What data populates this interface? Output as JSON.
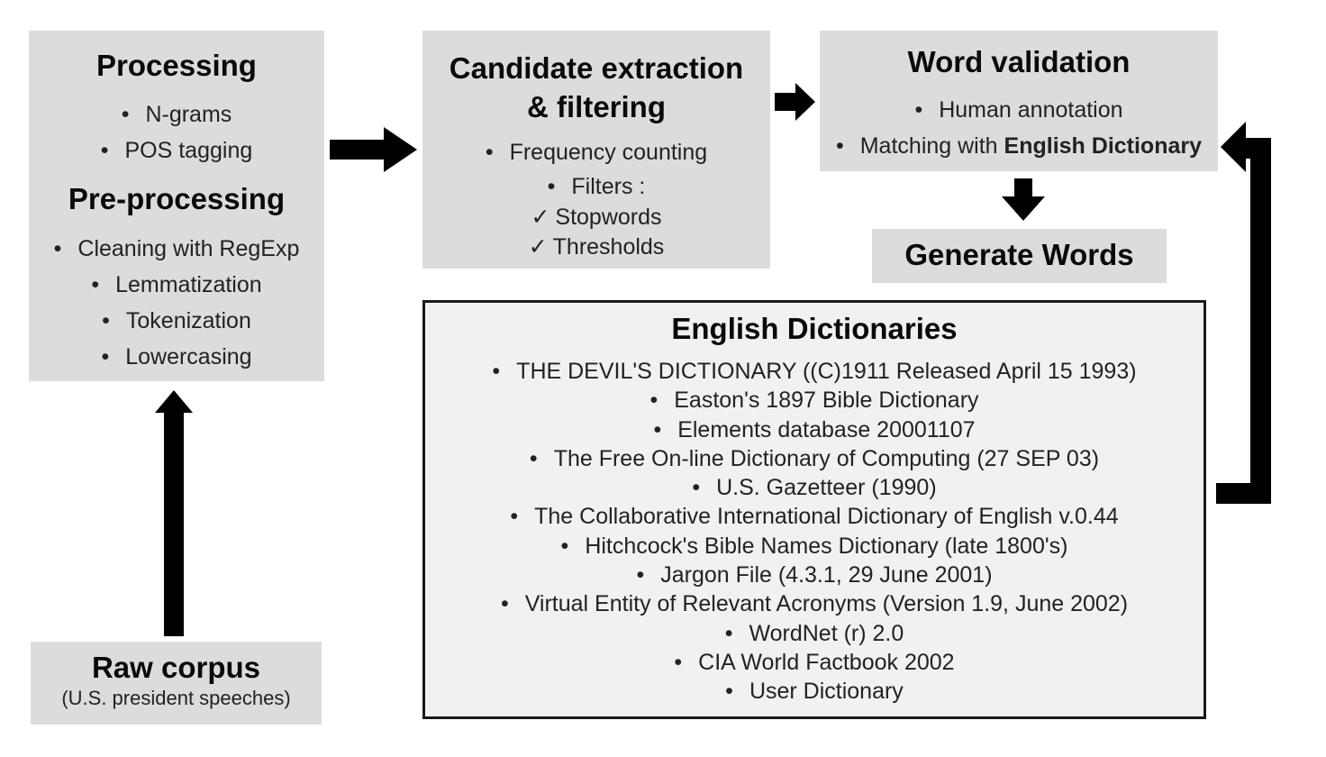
{
  "processing": {
    "title": "Processing",
    "items": [
      "N-grams",
      "POS tagging"
    ]
  },
  "preprocessing": {
    "title": "Pre-processing",
    "items": [
      "Cleaning with RegExp",
      "Lemmatization",
      "Tokenization",
      "Lowercasing"
    ]
  },
  "candidate": {
    "title_line1": "Candidate extraction",
    "title_line2": "& filtering",
    "items": [
      "Frequency counting",
      "Filters :"
    ],
    "checks": [
      "Stopwords",
      "Thresholds"
    ]
  },
  "validation": {
    "title": "Word validation",
    "item1": "Human annotation",
    "item2_prefix": "Matching with ",
    "item2_bold": "English Dictionary"
  },
  "generate": {
    "title": "Generate Words"
  },
  "raw": {
    "title": "Raw corpus",
    "subtitle": "(U.S. president speeches)"
  },
  "dictionaries": {
    "title": "English Dictionaries",
    "items": [
      "THE DEVIL'S DICTIONARY ((C)1911 Released April 15 1993)",
      "Easton's 1897 Bible Dictionary",
      "Elements database 20001107",
      "The Free On-line Dictionary of Computing (27 SEP 03)",
      "U.S. Gazetteer (1990)",
      "The Collaborative International Dictionary of English v.0.44",
      "Hitchcock's Bible Names Dictionary (late 1800's)",
      "Jargon File (4.3.1, 29 June 2001)",
      "Virtual Entity of Relevant Acronyms (Version 1.9, June 2002)",
      "WordNet (r) 2.0",
      "CIA World Factbook 2002",
      "User Dictionary"
    ]
  },
  "symbols": {
    "bullet": "•",
    "check": "✓"
  },
  "colors": {
    "box_fill": "#dcdcdc",
    "dict_fill": "#f1f1f1",
    "arrow": "#000000"
  }
}
